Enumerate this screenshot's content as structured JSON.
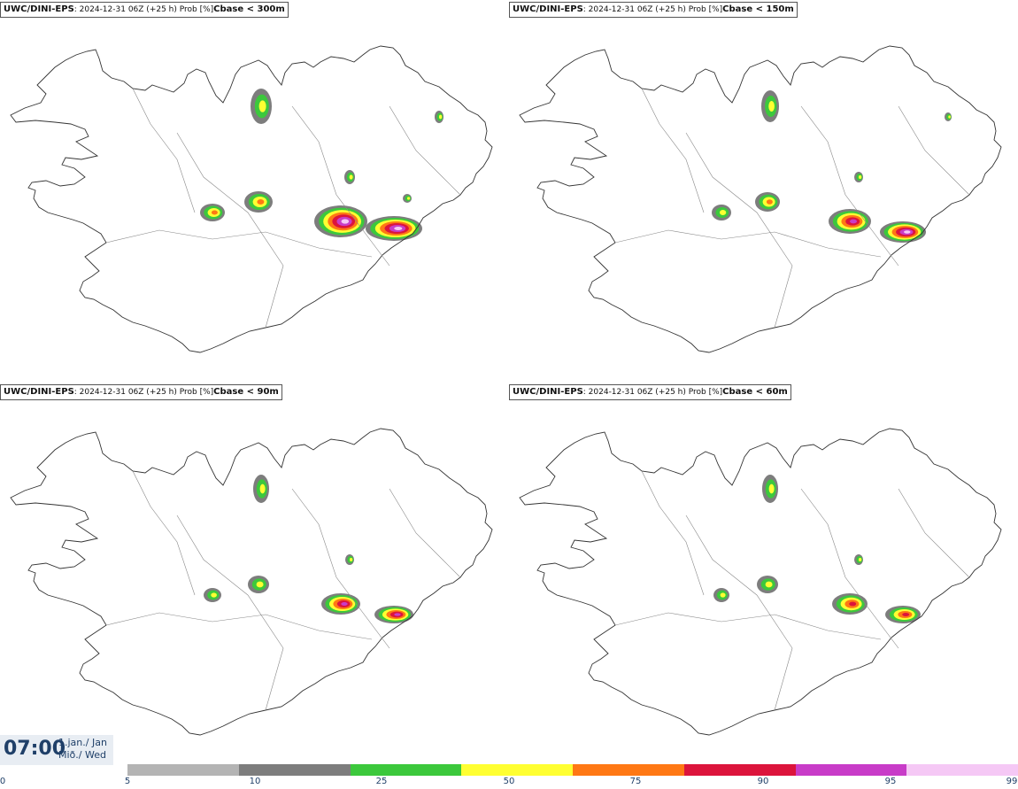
{
  "panels": [
    {
      "model": "UWC/DINI-EPS",
      "info": ": 2024-12-31 06Z (+25 h) Prob [%]",
      "threshold": "Cbase < 300m"
    },
    {
      "model": "UWC/DINI-EPS",
      "info": ": 2024-12-31 06Z (+25 h) Prob [%]",
      "threshold": "Cbase < 150m"
    },
    {
      "model": "UWC/DINI-EPS",
      "info": ": 2024-12-31 06Z (+25 h) Prob [%]",
      "threshold": "Cbase < 90m"
    },
    {
      "model": "UWC/DINI-EPS",
      "info": ": 2024-12-31 06Z (+25 h) Prob [%]",
      "threshold": "Cbase < 60m"
    }
  ],
  "valid_time": {
    "time": "07:00",
    "date_line1": "1.jan./ Jan",
    "date_line2": "Mið./ Wed"
  },
  "legend": {
    "colors": [
      "#b4b4b4",
      "#7d7d7d",
      "#3cc83c",
      "#ffff32",
      "#ff7814",
      "#dc143c",
      "#c83cc8",
      "#f5c8f5"
    ],
    "ticks": [
      "0",
      "5",
      "10",
      "25",
      "50",
      "75",
      "90",
      "95",
      "99"
    ]
  }
}
